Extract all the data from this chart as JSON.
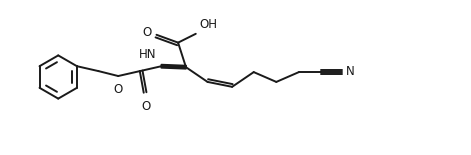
{
  "bg_color": "#ffffff",
  "line_color": "#1a1a1a",
  "line_width": 1.4,
  "font_size": 8.5,
  "figw": 4.71,
  "figh": 1.55,
  "dpi": 100,
  "xlim": [
    0,
    47.1
  ],
  "ylim": [
    0,
    15.5
  ]
}
